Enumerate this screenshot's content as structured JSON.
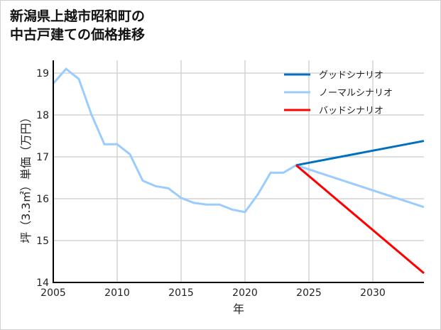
{
  "title_line1": "新潟県上越市昭和町の",
  "title_line2": "中古戸建ての価格推移",
  "chart_data": {
    "type": "line",
    "title": "新潟県上越市昭和町の中古戸建ての価格推移",
    "xlabel": "年",
    "ylabel": "坪（3.3㎡）単価（万円）",
    "xlim": [
      2005,
      2034
    ],
    "ylim": [
      14,
      19.4
    ],
    "x_ticks": [
      2005,
      2010,
      2015,
      2020,
      2025,
      2030
    ],
    "y_ticks": [
      14,
      15,
      16,
      17,
      18,
      19
    ],
    "grid": true,
    "legend_position": "upper right",
    "series": [
      {
        "name": "ノーマルシナリオ",
        "color": "#99ccff",
        "x": [
          2005,
          2006,
          2007,
          2008,
          2009,
          2010,
          2011,
          2012,
          2013,
          2014,
          2015,
          2016,
          2017,
          2018,
          2019,
          2020,
          2021,
          2022,
          2023,
          2024,
          2034
        ],
        "values": [
          18.75,
          19.1,
          18.86,
          18.0,
          17.3,
          17.3,
          17.06,
          16.43,
          16.3,
          16.25,
          16.02,
          15.9,
          15.86,
          15.86,
          15.74,
          15.68,
          16.1,
          16.62,
          16.62,
          16.8,
          15.8
        ]
      },
      {
        "name": "グッドシナリオ",
        "color": "#0070c0",
        "x": [
          2024,
          2034
        ],
        "values": [
          16.8,
          17.38
        ]
      },
      {
        "name": "バッドシナリオ",
        "color": "#ff0000",
        "x": [
          2024,
          2034
        ],
        "values": [
          16.8,
          14.22
        ]
      }
    ]
  },
  "legend": [
    {
      "label": "グッドシナリオ",
      "color": "#0070c0"
    },
    {
      "label": "ノーマルシナリオ",
      "color": "#99ccff"
    },
    {
      "label": "バッドシナリオ",
      "color": "#ff0000"
    }
  ]
}
